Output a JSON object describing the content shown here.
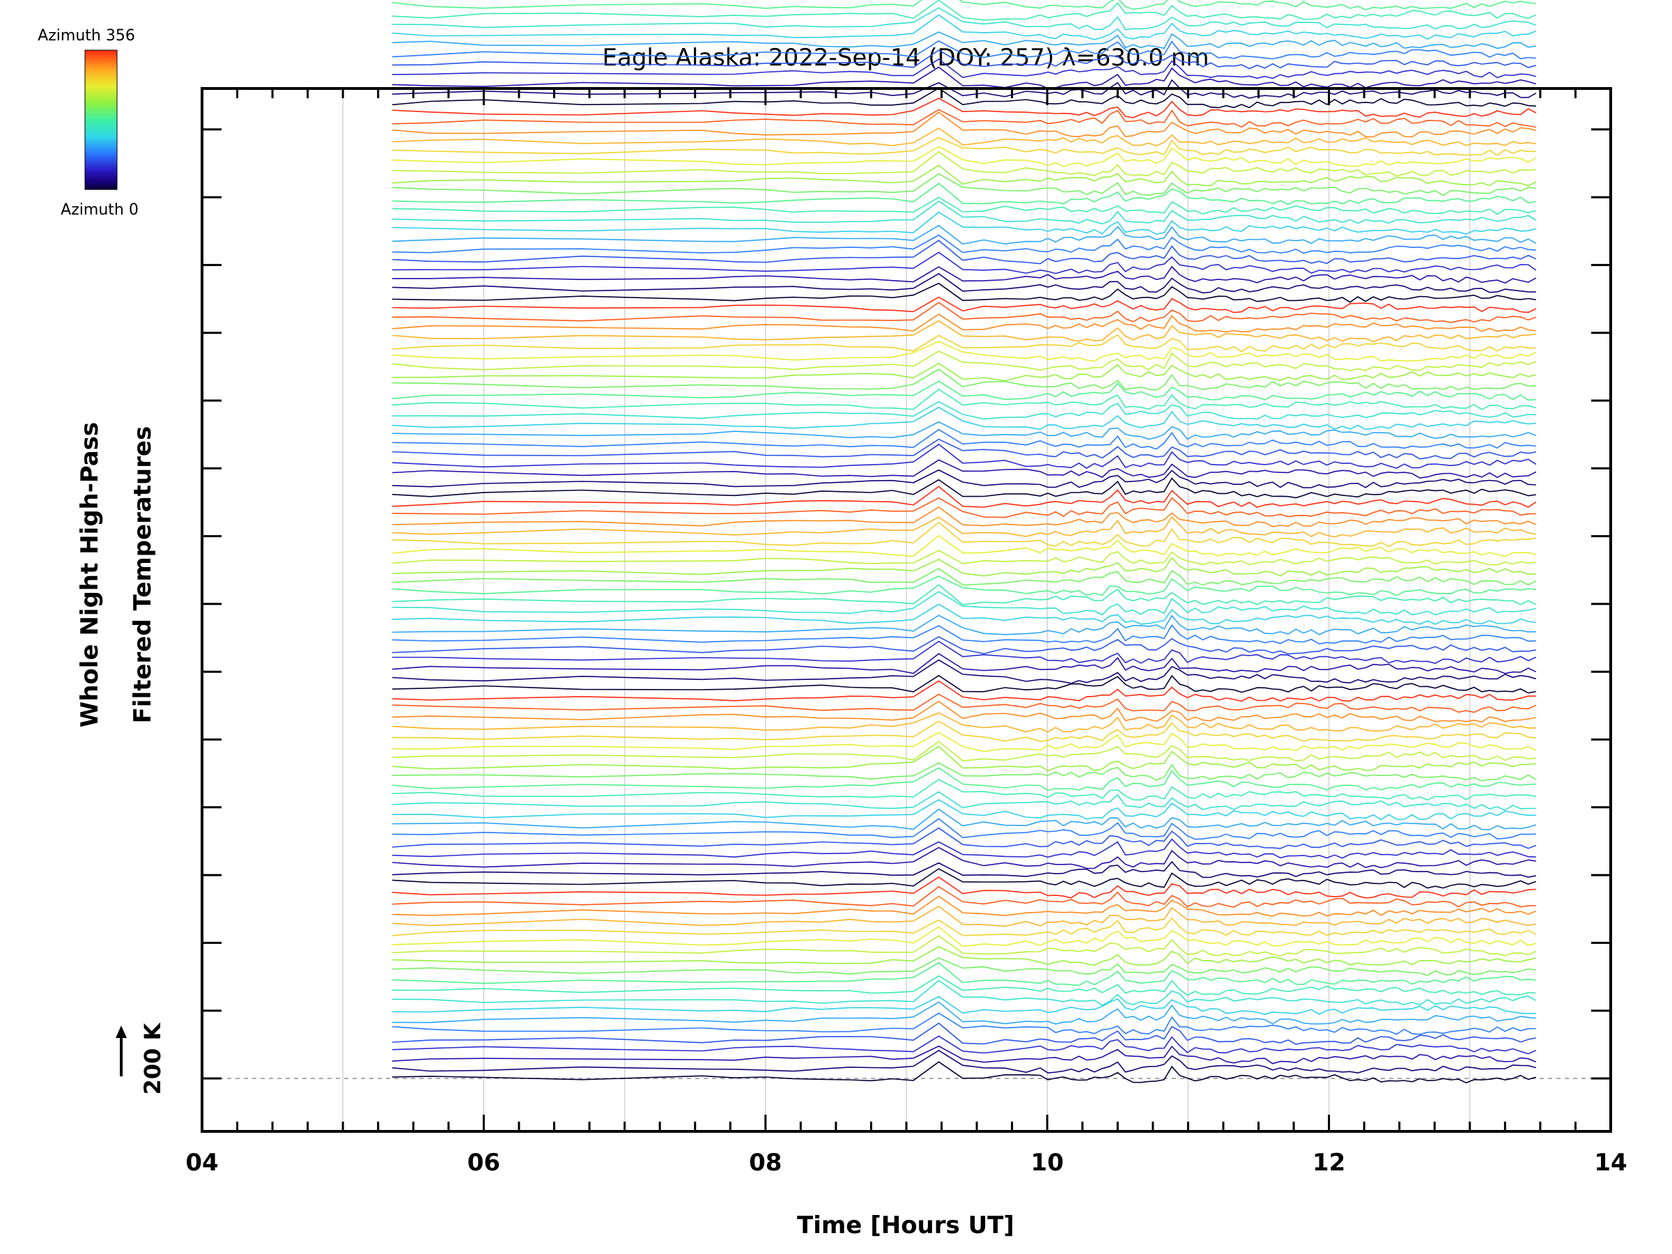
{
  "chart_data": {
    "type": "line",
    "title": "Eagle Alaska: 2022-Sep-14 (DOY: 257) λ=630.0 nm",
    "xlabel": "Time [Hours UT]",
    "ylabel_line1": "Whole Night High-Pass",
    "ylabel_line2": "Filtered Temperatures",
    "xlim": [
      4,
      14
    ],
    "x_ticks": [
      "04",
      "06",
      "08",
      "10",
      "12",
      "14"
    ],
    "x_tick_values": [
      4,
      6,
      8,
      10,
      12,
      14
    ],
    "time_range": [
      5.35,
      13.5
    ],
    "scale_bar_label": "200 K",
    "colorbar": {
      "top_label": "Azimuth 356",
      "bottom_label": "Azimuth 0",
      "min": 0,
      "max": 356,
      "colormap": "rainbow"
    },
    "stack": {
      "groups": 7,
      "traces_per_group": 20,
      "offset_per_trace_K": 34
    },
    "event_times_hours": [
      9.23,
      10.48,
      10.9
    ],
    "grid": "vertical",
    "colors": {
      "background": "#ffffff",
      "axes": "#000000",
      "grid": "#d3d3d3"
    }
  }
}
